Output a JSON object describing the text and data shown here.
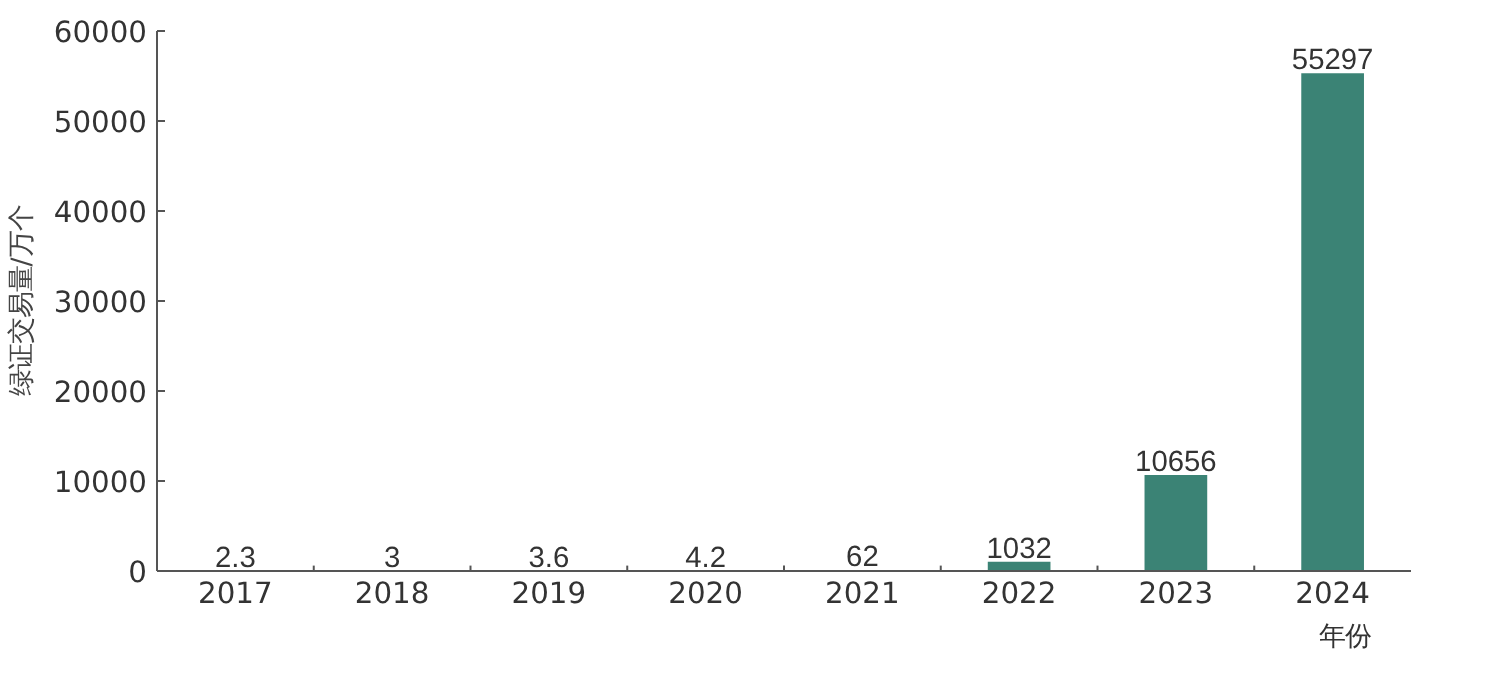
{
  "chart_data": {
    "type": "bar",
    "categories": [
      "2017",
      "2018",
      "2019",
      "2020",
      "2021",
      "2022",
      "2023",
      "2024"
    ],
    "values": [
      2.3,
      3,
      3.6,
      4.2,
      62,
      1032,
      10656,
      55297
    ],
    "color": "#3b8375",
    "xlabel": "年份",
    "ylabel": "绿证交易量/万个",
    "ylim": [
      0,
      60000
    ],
    "yticks": [
      0,
      10000,
      20000,
      30000,
      40000,
      50000,
      60000
    ],
    "data_labels": true,
    "grid": false
  }
}
